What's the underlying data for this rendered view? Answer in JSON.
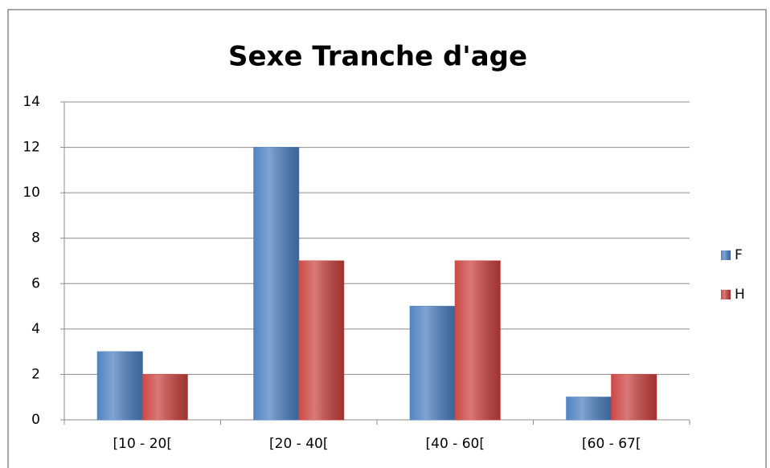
{
  "chart_data": {
    "type": "bar",
    "title": "Sexe Tranche d'age",
    "categories": [
      "[10 - 20[",
      "[20 - 40[",
      "[40 - 60[",
      "[60 - 67["
    ],
    "series": [
      {
        "name": "F",
        "color": "#4a7ebf",
        "values": [
          3,
          12,
          5,
          1
        ]
      },
      {
        "name": "H",
        "color": "#c9403d",
        "values": [
          2,
          7,
          7,
          2
        ]
      }
    ],
    "ylim": [
      0,
      14
    ],
    "yticks": [
      0,
      2,
      4,
      6,
      8,
      10,
      12,
      14
    ],
    "grid": true,
    "legend": "right"
  }
}
